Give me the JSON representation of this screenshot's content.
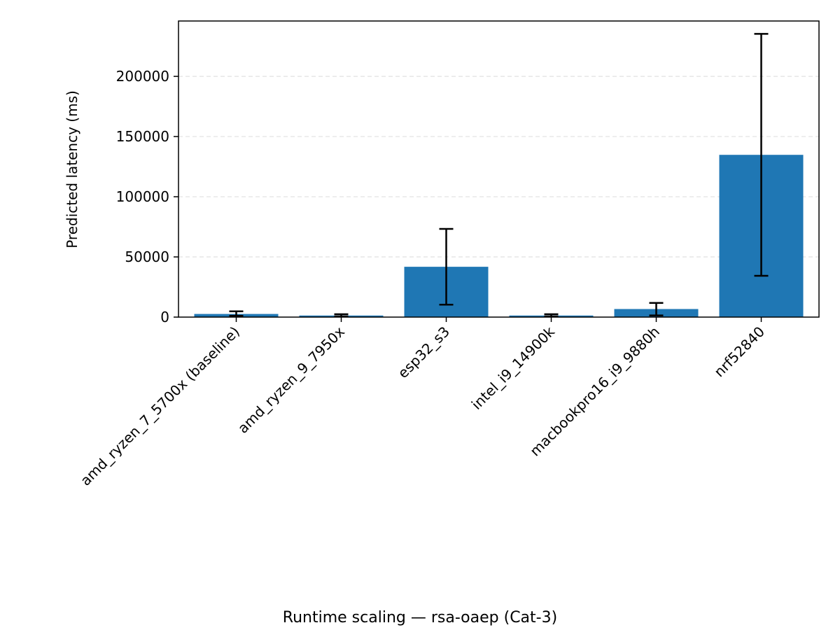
{
  "chart_data": {
    "type": "bar",
    "title": "",
    "caption": "Runtime scaling — rsa-oaep (Cat-3)",
    "xlabel": "",
    "ylabel": "Predicted latency (ms)",
    "categories": [
      "amd_ryzen_7_5700x (baseline)",
      "amd_ryzen_9_7950x",
      "esp32_s3",
      "intel_i9_14900k",
      "macbookpro16_i9_9880h",
      "nrf52840"
    ],
    "values": [
      2600,
      1300,
      41800,
      1300,
      6700,
      134800
    ],
    "error_low": [
      1100,
      600,
      10300,
      600,
      1400,
      34300
    ],
    "error_high": [
      4800,
      2400,
      73300,
      2400,
      11800,
      235300
    ],
    "ylim": [
      0,
      246000
    ],
    "yticks": [
      0,
      50000,
      100000,
      150000,
      200000
    ],
    "grid": "y-dashed",
    "colors": {
      "bar": "#1f77b4",
      "error": "#000000",
      "grid": "#e0e0e0"
    }
  }
}
